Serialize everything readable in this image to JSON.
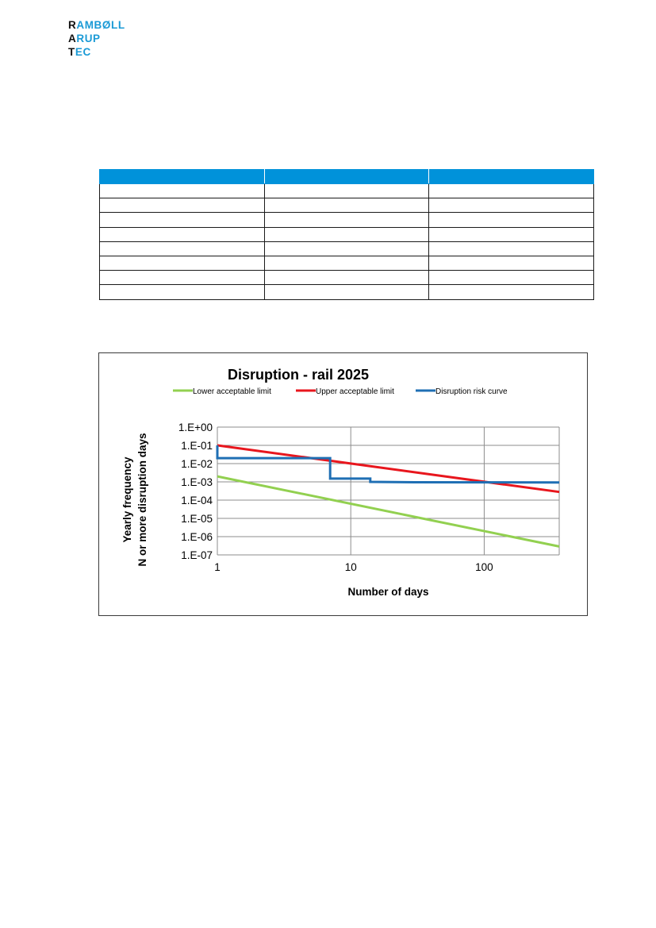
{
  "logo": {
    "lines": [
      {
        "first": "R",
        "rest": "AMBØLL"
      },
      {
        "first": "A",
        "rest": "RUP"
      },
      {
        "first": "T",
        "rest": "EC"
      }
    ]
  },
  "table": {
    "columns": 3,
    "body_rows": 8
  },
  "chart_data": {
    "type": "line",
    "title": "Disruption - rail 2025",
    "xlabel": "Number of days",
    "ylabel_lines": [
      "Yearly frequency",
      "N or more disruption days"
    ],
    "x_scale": "log",
    "y_scale": "log",
    "xlim": [
      1,
      365
    ],
    "ylim": [
      1e-07,
      1
    ],
    "x_ticks": [
      {
        "value": 1,
        "label": "1"
      },
      {
        "value": 10,
        "label": "10"
      },
      {
        "value": 100,
        "label": "100"
      }
    ],
    "y_ticks": [
      {
        "value": 1,
        "label": "1.E+00"
      },
      {
        "value": 0.1,
        "label": "1.E-01"
      },
      {
        "value": 0.01,
        "label": "1.E-02"
      },
      {
        "value": 0.001,
        "label": "1.E-03"
      },
      {
        "value": 0.0001,
        "label": "1.E-04"
      },
      {
        "value": 1e-05,
        "label": "1.E-05"
      },
      {
        "value": 1e-06,
        "label": "1.E-06"
      },
      {
        "value": 1e-07,
        "label": "1.E-07"
      }
    ],
    "grid": true,
    "legend": "top",
    "series": [
      {
        "name": "Lower acceptable limit",
        "color": "#92d050",
        "x": [
          1,
          365
        ],
        "y": [
          0.002,
          2.9e-07
        ]
      },
      {
        "name": "Upper acceptable limit",
        "color": "#e8161d",
        "x": [
          1,
          365
        ],
        "y": [
          0.1,
          0.00028
        ]
      },
      {
        "name": "Disruption risk curve",
        "color": "#1f6fb4",
        "step": true,
        "x": [
          1,
          1,
          7,
          7,
          14,
          14,
          30,
          365
        ],
        "y": [
          0.1,
          0.02,
          0.02,
          0.0015,
          0.0015,
          0.001,
          0.00095,
          0.00092
        ]
      }
    ]
  }
}
